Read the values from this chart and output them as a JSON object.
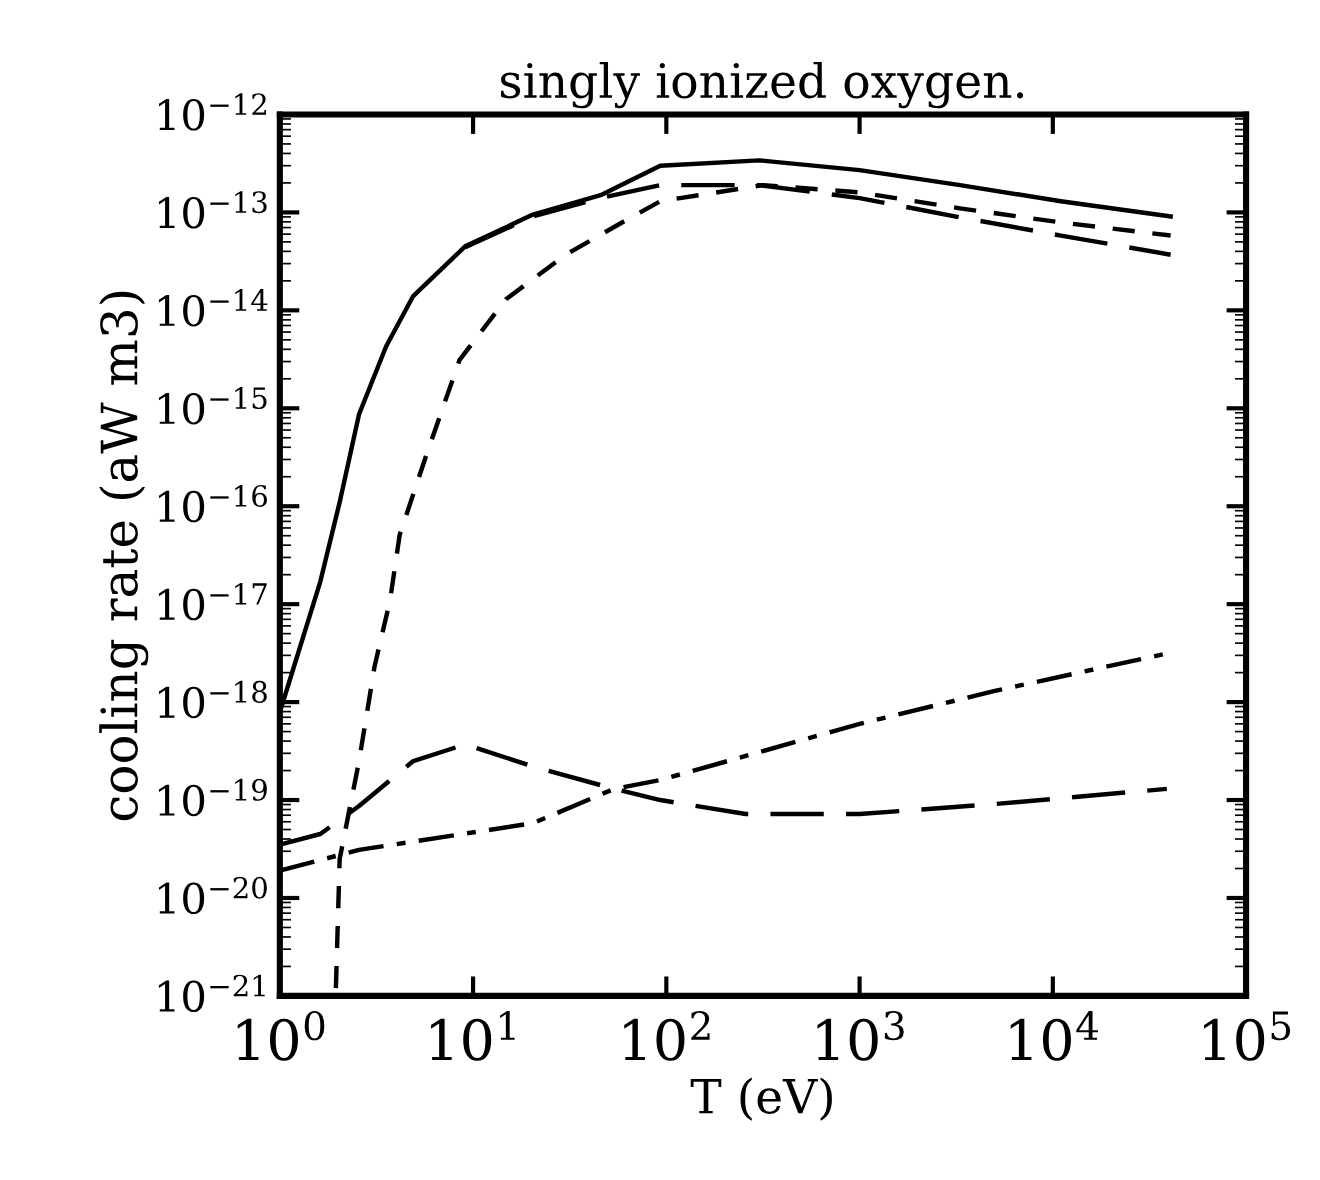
{
  "chart_data": {
    "type": "line",
    "title": "singly ionized oxygen.",
    "xlabel": "T (eV)",
    "ylabel": "cooling rate (aW m3)",
    "log": "xy",
    "grid": false,
    "xlim": [
      1,
      100000
    ],
    "ylim": [
      1e-21,
      1e-12
    ],
    "xticks": [
      {
        "value": 1,
        "label": "10$^{0}$"
      },
      {
        "value": 10,
        "label": "10$^{1}$"
      },
      {
        "value": 100,
        "label": "10$^{2}$"
      },
      {
        "value": 1000,
        "label": "10$^{3}$"
      },
      {
        "value": 10000,
        "label": "10$^{4}$"
      },
      {
        "value": 100000,
        "label": "10$^{5}$"
      }
    ],
    "yticks": [
      {
        "value": 1e-21,
        "label": "10$^{−21}$"
      },
      {
        "value": 1e-20,
        "label": "10$^{−20}$"
      },
      {
        "value": 1e-19,
        "label": "10$^{−19}$"
      },
      {
        "value": 1e-18,
        "label": "10$^{−18}$"
      },
      {
        "value": 1e-17,
        "label": "10$^{−17}$"
      },
      {
        "value": 1e-16,
        "label": "10$^{−16}$"
      },
      {
        "value": 1e-15,
        "label": "10$^{−15}$"
      },
      {
        "value": 1e-14,
        "label": "10$^{−14}$"
      },
      {
        "value": 1e-13,
        "label": "10$^{−13}$"
      },
      {
        "value": 1e-12,
        "label": "10$^{−12}$"
      }
    ],
    "series": [
      {
        "color": "#000000",
        "line_style": "solid",
        "x": [
          1,
          1.62,
          2.04,
          2.57,
          3.55,
          4.9,
          9.1,
          20.4,
          45.7,
          93,
          302,
          1000,
          3310,
          11000,
          40700
        ],
        "values": [
          7.9e-19,
          1.7e-17,
          1.1e-16,
          8.7e-16,
          4.3e-15,
          1.4e-14,
          4.5e-14,
          9.5e-14,
          1.5e-13,
          3e-13,
          3.4e-13,
          2.7e-13,
          1.9e-13,
          1.3e-13,
          9.1e-14
        ]
      },
      {
        "color": "#000000",
        "line_style": "longdash",
        "x": [
          9.1,
          20.4,
          45.7,
          93,
          200,
          302,
          1000,
          3310,
          11000,
          40700
        ],
        "values": [
          4.4e-14,
          9.1e-14,
          1.4e-13,
          1.9e-13,
          1.9e-13,
          1.9e-13,
          1.4e-13,
          8.9e-14,
          5.8e-14,
          3.7e-14
        ]
      },
      {
        "color": "#000000",
        "line_style": "dashed",
        "x": [
          1.95,
          2.04,
          2.57,
          3.09,
          3.72,
          4.17,
          5.75,
          8.5,
          14.8,
          30.2,
          61.7,
          93,
          316,
          1000,
          3310,
          11000,
          40700
        ],
        "values": [
          1.2e-21,
          2.5e-20,
          2.5e-19,
          2.3e-18,
          1.1e-17,
          5.1e-17,
          3.4e-16,
          3.1e-15,
          1.3e-14,
          3.7e-14,
          8.3e-14,
          1.3e-13,
          1.9e-13,
          1.6e-13,
          1.1e-13,
          7.9e-14,
          5.8e-14
        ]
      },
      {
        "color": "#000000",
        "line_style": "longdash",
        "x": [
          1,
          1.62,
          2.57,
          4.9,
          9.1,
          20.4,
          53.7,
          93,
          257,
          1000,
          5010,
          38900
        ],
        "values": [
          3.5e-20,
          4.5e-20,
          8.7e-20,
          2.5e-19,
          3.7e-19,
          2.2e-19,
          1.3e-19,
          1e-19,
          7.2e-20,
          7.2e-20,
          9.1e-20,
          1.3e-19
        ]
      },
      {
        "color": "#000000",
        "line_style": "dashdot",
        "x": [
          1,
          2.57,
          20.4,
          53.7,
          93,
          1000,
          5010,
          38000
        ],
        "values": [
          1.9e-20,
          3.1e-20,
          5.8e-20,
          1.3e-19,
          1.6e-19,
          6e-19,
          1.3e-18,
          3.1e-18
        ]
      }
    ]
  }
}
